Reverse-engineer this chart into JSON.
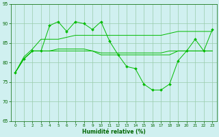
{
  "x": [
    0,
    1,
    2,
    3,
    4,
    5,
    6,
    7,
    8,
    9,
    10,
    11,
    12,
    13,
    14,
    15,
    16,
    17,
    18,
    19,
    20,
    21,
    22,
    23
  ],
  "series_spiky": [
    77.5,
    81,
    83,
    83,
    89.5,
    90.5,
    88,
    90.5,
    90,
    88.5,
    90.5,
    85.5,
    82,
    79,
    78.5,
    74.5,
    73,
    73,
    74.5,
    80.5,
    83,
    86,
    83,
    88.5
  ],
  "series_upper": [
    77.5,
    81.5,
    83.5,
    86,
    86,
    86,
    86.5,
    87,
    87,
    87,
    87,
    87,
    87,
    87,
    87,
    87,
    87,
    87,
    87.5,
    88,
    88,
    88,
    88,
    88
  ],
  "series_mid1": [
    77.5,
    81,
    83,
    83,
    83,
    83.5,
    83.5,
    83.5,
    83.5,
    83,
    82.5,
    82.5,
    82.5,
    82.5,
    82.5,
    82.5,
    82.5,
    82.5,
    83,
    83,
    83,
    83,
    83,
    83
  ],
  "series_mid2": [
    77.5,
    81,
    83,
    83,
    83,
    83,
    83,
    83,
    83,
    83,
    82,
    82,
    82,
    82,
    82,
    82,
    82,
    82,
    82,
    83,
    83,
    83,
    83,
    83
  ],
  "line_color": "#00bb00",
  "marker_color": "#00bb00",
  "bg_color": "#d0f0f0",
  "grid_color": "#99ccaa",
  "xlabel": "Humidité relative (%)",
  "ylim": [
    65,
    95
  ],
  "xlim": [
    -0.5,
    23.5
  ],
  "yticks": [
    65,
    70,
    75,
    80,
    85,
    90,
    95
  ],
  "xticks": [
    0,
    1,
    2,
    3,
    4,
    5,
    6,
    7,
    8,
    9,
    10,
    11,
    12,
    13,
    14,
    15,
    16,
    17,
    18,
    19,
    20,
    21,
    22,
    23
  ]
}
